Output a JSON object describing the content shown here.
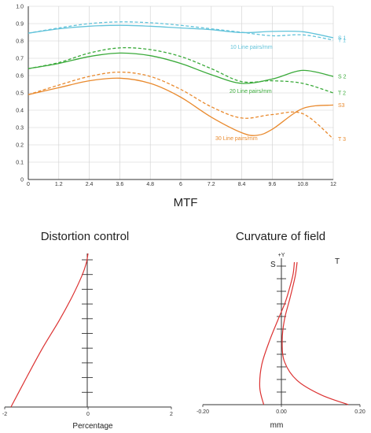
{
  "colors": {
    "blue": "#62c3da",
    "green": "#3aaa3a",
    "orange": "#e98a2e",
    "red": "#dc3232",
    "grid": "#cfcfcf",
    "axis": "#333333"
  },
  "chart_data": [
    {
      "type": "line",
      "title": "MTF",
      "xlim": [
        0,
        12
      ],
      "ylim": [
        0,
        1.0
      ],
      "x_ticks": [
        "0",
        "1.2",
        "2.4",
        "3.6",
        "4.8",
        "6",
        "7.2",
        "8.4",
        "9.6",
        "10.8",
        "12"
      ],
      "y_ticks": [
        "0",
        "0.1",
        "0.2",
        "0.3",
        "0.4",
        "0.5",
        "0.6",
        "0.7",
        "0.8",
        "0.9",
        "1.0"
      ],
      "grid": true,
      "annotations": [
        "10 Line pairs/mm",
        "20 Line pairs/mm",
        "30 Line pairs/mm"
      ],
      "series": [
        {
          "name": "S 1",
          "color": "blue",
          "dash": false,
          "x": [
            0,
            1.2,
            2.4,
            3.6,
            4.8,
            6,
            7.2,
            8.4,
            9.6,
            10.8,
            12
          ],
          "y": [
            0.845,
            0.87,
            0.885,
            0.89,
            0.885,
            0.875,
            0.865,
            0.848,
            0.855,
            0.853,
            0.818
          ]
        },
        {
          "name": "T 1",
          "color": "blue",
          "dash": true,
          "x": [
            0,
            1.2,
            2.4,
            3.6,
            4.8,
            6,
            7.2,
            8.4,
            9.6,
            10.8,
            12
          ],
          "y": [
            0.845,
            0.875,
            0.9,
            0.91,
            0.905,
            0.89,
            0.87,
            0.85,
            0.83,
            0.835,
            0.805
          ]
        },
        {
          "name": "S 2",
          "color": "green",
          "dash": false,
          "x": [
            0,
            1.2,
            2.4,
            3.6,
            4.8,
            6,
            7.2,
            8.4,
            9.6,
            10.8,
            12
          ],
          "y": [
            0.64,
            0.67,
            0.71,
            0.73,
            0.715,
            0.67,
            0.605,
            0.555,
            0.58,
            0.63,
            0.595
          ]
        },
        {
          "name": "T 2",
          "color": "green",
          "dash": true,
          "x": [
            0,
            1.2,
            2.4,
            3.6,
            4.8,
            6,
            7.2,
            8.4,
            9.6,
            10.8,
            12
          ],
          "y": [
            0.64,
            0.675,
            0.73,
            0.76,
            0.75,
            0.71,
            0.64,
            0.565,
            0.57,
            0.555,
            0.5
          ]
        },
        {
          "name": "S3",
          "color": "orange",
          "dash": false,
          "x": [
            0,
            1.2,
            2.4,
            3.6,
            4.8,
            6,
            7.2,
            8.4,
            9.0,
            9.6,
            10.8,
            12
          ],
          "y": [
            0.49,
            0.53,
            0.57,
            0.585,
            0.555,
            0.475,
            0.36,
            0.27,
            0.255,
            0.29,
            0.41,
            0.43
          ]
        },
        {
          "name": "T 3",
          "color": "orange",
          "dash": true,
          "x": [
            0,
            1.2,
            2.4,
            3.6,
            4.8,
            6,
            7.2,
            8.4,
            9.6,
            10.8,
            12
          ],
          "y": [
            0.49,
            0.545,
            0.595,
            0.62,
            0.595,
            0.52,
            0.42,
            0.355,
            0.375,
            0.38,
            0.235
          ]
        }
      ]
    },
    {
      "type": "line",
      "title": "Distortion control",
      "xlabel": "Percentage",
      "xlim": [
        -2,
        2
      ],
      "x_ticks": [
        "-2",
        "0",
        "2"
      ],
      "series": [
        {
          "color": "red",
          "dash": false,
          "x": [
            -1.85,
            -1.5,
            -1.1,
            -0.7,
            -0.38,
            -0.14,
            -0.04,
            0.0
          ],
          "y": [
            0.0,
            0.18,
            0.38,
            0.56,
            0.72,
            0.86,
            0.94,
            1.0
          ]
        }
      ]
    },
    {
      "type": "line",
      "title": "Curvature of field",
      "xlabel": "mm",
      "xlim": [
        -0.2,
        0.2
      ],
      "x_ticks": [
        "-0.20",
        "0.00",
        "0.20"
      ],
      "y_axis_label": "+Y",
      "series": [
        {
          "name": "S",
          "color": "red",
          "dash": false,
          "x": [
            -0.045,
            -0.055,
            -0.05,
            -0.03,
            -0.008,
            0.01,
            0.022,
            0.03,
            0.033
          ],
          "y": [
            0.0,
            0.12,
            0.28,
            0.45,
            0.6,
            0.72,
            0.83,
            0.92,
            1.0
          ]
        },
        {
          "name": "T",
          "color": "red",
          "dash": false,
          "x": [
            0.17,
            0.1,
            0.04,
            0.008,
            0.002,
            0.008,
            0.022,
            0.035,
            0.04
          ],
          "y": [
            0.0,
            0.07,
            0.17,
            0.3,
            0.45,
            0.6,
            0.75,
            0.9,
            1.0
          ]
        }
      ]
    }
  ]
}
